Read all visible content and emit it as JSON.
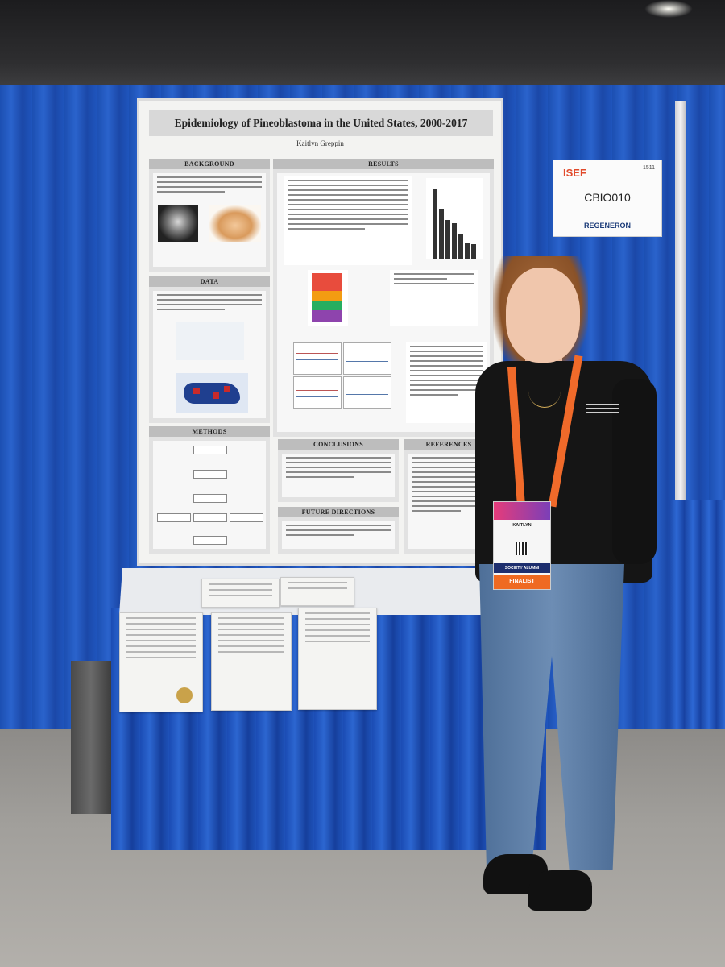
{
  "scene": {
    "kind": "science-fair-booth-photo",
    "accent_colors": {
      "curtain": "#1f55bd",
      "lanyard": "#f06a2a",
      "badge_brand": "#e14a2b"
    }
  },
  "poster": {
    "title": "Epidemiology of Pineoblastoma in the United States, 2000-2017",
    "author": "Kaitlyn Greppin",
    "sections": {
      "background": "BACKGROUND",
      "results": "RESULTS",
      "data": "DATA",
      "methods": "METHODS",
      "conclusions": "CONCLUSIONS",
      "references": "REFERENCES",
      "future": "FUTURE DIRECTIONS"
    }
  },
  "booth_sign": {
    "brand": "ISEF",
    "number": "1511",
    "code": "CBIO010",
    "sponsor": "REGENERON"
  },
  "name_badge": {
    "name": "KAITLYN",
    "society": "SOCIETY ALUMNI",
    "status": "FINALIST"
  }
}
